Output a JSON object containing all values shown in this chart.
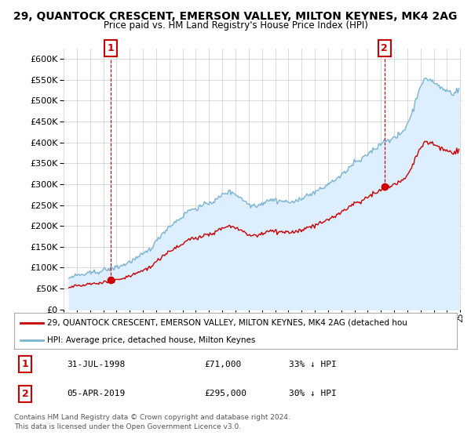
{
  "title": "29, QUANTOCK CRESCENT, EMERSON VALLEY, MILTON KEYNES, MK4 2AG",
  "subtitle": "Price paid vs. HM Land Registry's House Price Index (HPI)",
  "legend_line1": "29, QUANTOCK CRESCENT, EMERSON VALLEY, MILTON KEYNES, MK4 2AG (detached hou",
  "legend_line2": "HPI: Average price, detached house, Milton Keynes",
  "annotation1_label": "1",
  "annotation1_date": "31-JUL-1998",
  "annotation1_price": "£71,000",
  "annotation1_hpi": "33% ↓ HPI",
  "annotation2_label": "2",
  "annotation2_date": "05-APR-2019",
  "annotation2_price": "£295,000",
  "annotation2_hpi": "30% ↓ HPI",
  "footer1": "Contains HM Land Registry data © Crown copyright and database right 2024.",
  "footer2": "This data is licensed under the Open Government Licence v3.0.",
  "hpi_color": "#7ab3d4",
  "hpi_fill_color": "#ddeeff",
  "price_color": "#cc0000",
  "background_color": "#ffffff",
  "grid_color": "#cccccc",
  "ylim": [
    0,
    625000
  ],
  "yticks": [
    0,
    50000,
    100000,
    150000,
    200000,
    250000,
    300000,
    350000,
    400000,
    450000,
    500000,
    550000,
    600000
  ],
  "sale1_year": 1998.58,
  "sale1_price": 71000,
  "sale2_year": 2019.27,
  "sale2_price": 295000,
  "xmin": 1995.4,
  "xmax": 2025.1
}
